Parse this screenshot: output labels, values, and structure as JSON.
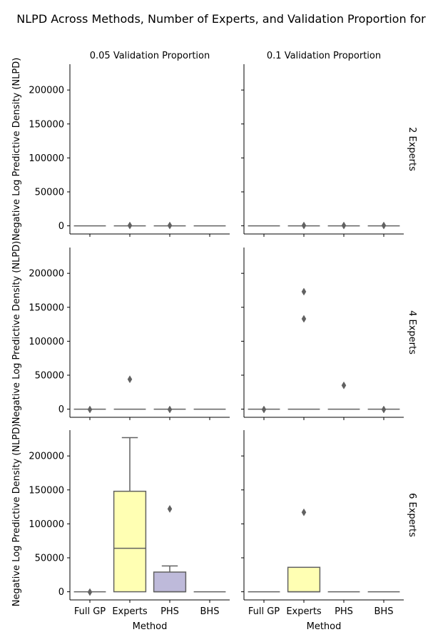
{
  "chart_data": {
    "type": "box",
    "title": "NLPD Across Methods, Number of Experts, and Validation Proportion for",
    "xlabel": "Method",
    "ylabel": "Negative Log Predictive Density (NLPD)",
    "categories": [
      "Full GP",
      "Experts",
      "PHS",
      "BHS"
    ],
    "category_colors": [
      "#8dd3c7",
      "#ffffb3",
      "#bebada",
      "#fb8072"
    ],
    "ylim": [
      -12000,
      238000
    ],
    "yticks": [
      0,
      50000,
      100000,
      150000,
      200000
    ],
    "grid": false,
    "col_labels": [
      "0.05 Validation Proportion",
      "0.1 Validation Proportion"
    ],
    "row_labels": [
      "2 Experts",
      "4 Experts",
      "6 Experts"
    ],
    "panels": [
      {
        "experts": "2 Experts",
        "validation": "0.05 Validation Proportion",
        "boxes": [
          {
            "method": "Full GP",
            "min": 0,
            "q1": 0,
            "median": 0,
            "q3": 0,
            "max": 0,
            "outliers": []
          },
          {
            "method": "Experts",
            "min": 0,
            "q1": 0,
            "median": 0,
            "q3": 0,
            "max": 0,
            "outliers": [
              500
            ]
          },
          {
            "method": "PHS",
            "min": 0,
            "q1": 0,
            "median": 0,
            "q3": 0,
            "max": 0,
            "outliers": [
              500
            ]
          },
          {
            "method": "BHS",
            "min": 0,
            "q1": 0,
            "median": 0,
            "q3": 0,
            "max": 0,
            "outliers": []
          }
        ]
      },
      {
        "experts": "2 Experts",
        "validation": "0.1 Validation Proportion",
        "boxes": [
          {
            "method": "Full GP",
            "min": 0,
            "q1": 0,
            "median": 0,
            "q3": 0,
            "max": 0,
            "outliers": []
          },
          {
            "method": "Experts",
            "min": 0,
            "q1": 0,
            "median": 0,
            "q3": 0,
            "max": 0,
            "outliers": [
              500
            ]
          },
          {
            "method": "PHS",
            "min": 0,
            "q1": 0,
            "median": 0,
            "q3": 0,
            "max": 0,
            "outliers": [
              500
            ]
          },
          {
            "method": "BHS",
            "min": 0,
            "q1": 0,
            "median": 0,
            "q3": 0,
            "max": 0,
            "outliers": [
              500
            ]
          }
        ]
      },
      {
        "experts": "4 Experts",
        "validation": "0.05 Validation Proportion",
        "boxes": [
          {
            "method": "Full GP",
            "min": 0,
            "q1": 0,
            "median": 0,
            "q3": 0,
            "max": 0,
            "outliers": [
              -500
            ]
          },
          {
            "method": "Experts",
            "min": 0,
            "q1": 0,
            "median": 0,
            "q3": 0,
            "max": 0,
            "outliers": [
              44000
            ]
          },
          {
            "method": "PHS",
            "min": 0,
            "q1": 0,
            "median": 0,
            "q3": 0,
            "max": 0,
            "outliers": [
              -500
            ]
          },
          {
            "method": "BHS",
            "min": 0,
            "q1": 0,
            "median": 0,
            "q3": 0,
            "max": 0,
            "outliers": []
          }
        ]
      },
      {
        "experts": "4 Experts",
        "validation": "0.1 Validation Proportion",
        "boxes": [
          {
            "method": "Full GP",
            "min": 0,
            "q1": 0,
            "median": 0,
            "q3": 0,
            "max": 0,
            "outliers": [
              -500
            ]
          },
          {
            "method": "Experts",
            "min": 0,
            "q1": 0,
            "median": 0,
            "q3": 0,
            "max": 0,
            "outliers": [
              173000,
              133000
            ]
          },
          {
            "method": "PHS",
            "min": 0,
            "q1": 0,
            "median": 0,
            "q3": 0,
            "max": 0,
            "outliers": [
              35000
            ]
          },
          {
            "method": "BHS",
            "min": 0,
            "q1": 0,
            "median": 0,
            "q3": 0,
            "max": 0,
            "outliers": [
              -500
            ]
          }
        ]
      },
      {
        "experts": "6 Experts",
        "validation": "0.05 Validation Proportion",
        "boxes": [
          {
            "method": "Full GP",
            "min": 0,
            "q1": 0,
            "median": 0,
            "q3": 0,
            "max": 0,
            "outliers": [
              -500
            ]
          },
          {
            "method": "Experts",
            "min": 0,
            "q1": 0,
            "median": 64000,
            "q3": 148000,
            "max": 227000,
            "outliers": []
          },
          {
            "method": "PHS",
            "min": 0,
            "q1": 0,
            "median": 0,
            "q3": 29000,
            "max": 38000,
            "outliers": [
              122000
            ]
          },
          {
            "method": "BHS",
            "min": 0,
            "q1": 0,
            "median": 0,
            "q3": 0,
            "max": 0,
            "outliers": []
          }
        ]
      },
      {
        "experts": "6 Experts",
        "validation": "0.1 Validation Proportion",
        "boxes": [
          {
            "method": "Full GP",
            "min": 0,
            "q1": 0,
            "median": 0,
            "q3": 0,
            "max": 0,
            "outliers": []
          },
          {
            "method": "Experts",
            "min": 0,
            "q1": 0,
            "median": 0,
            "q3": 36000,
            "max": 36000,
            "outliers": [
              117000
            ]
          },
          {
            "method": "PHS",
            "min": 0,
            "q1": 0,
            "median": 0,
            "q3": 0,
            "max": 0,
            "outliers": []
          },
          {
            "method": "BHS",
            "min": 0,
            "q1": 0,
            "median": 0,
            "q3": 0,
            "max": 0,
            "outliers": []
          }
        ]
      }
    ]
  }
}
